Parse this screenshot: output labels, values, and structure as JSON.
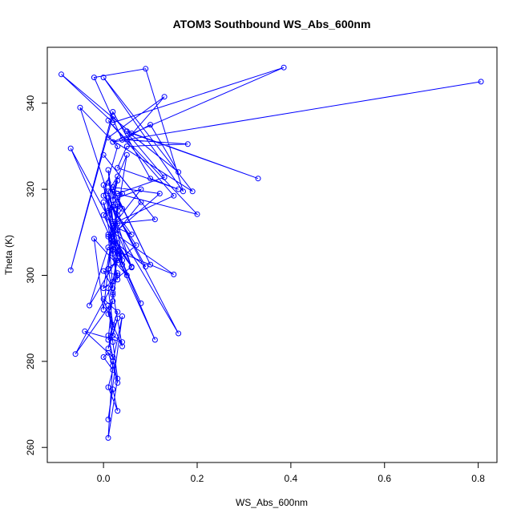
{
  "chart_data": {
    "type": "line",
    "title": "ATOM3 Southbound WS_Abs_600nm",
    "xlabel": "WS_Abs_600nm",
    "ylabel": "Theta (K)",
    "xlim": [
      -0.12,
      0.84
    ],
    "ylim": [
      256.5,
      353
    ],
    "x_ticks": [
      0.0,
      0.2,
      0.4,
      0.6,
      0.8
    ],
    "x_tick_labels": [
      "0.0",
      "0.2",
      "0.4",
      "0.6",
      "0.8"
    ],
    "y_ticks": [
      260,
      280,
      300,
      320,
      340
    ],
    "y_tick_labels": [
      "260",
      "280",
      "300",
      "320",
      "340"
    ],
    "grid": false,
    "color": "#0000ff",
    "marker": "open-circle",
    "series": [
      {
        "x": [
          0.806,
          0.02,
          0.385,
          0.02,
          -0.09,
          0.06,
          0.33,
          0.05,
          0.16,
          0.1,
          0.04,
          -0.02,
          0.09,
          0.17,
          0.0,
          0.19,
          0.01,
          0.13,
          0.05,
          0.18,
          0.05,
          0.03,
          0.16,
          0.1,
          0.02,
          -0.07,
          0.02,
          0.13,
          0.03,
          0.2,
          0.01,
          0.15,
          0.02,
          0.11,
          0.0,
          0.08,
          0.02,
          0.06,
          -0.05,
          0.03,
          0.0,
          0.07,
          0.01,
          0.05,
          0.02,
          0.04,
          0.0,
          0.03,
          0.06,
          0.02,
          0.01,
          0.04,
          0.0,
          0.03,
          0.02,
          0.01,
          0.03,
          0.02,
          0.01,
          0.04,
          0.0,
          0.02,
          0.03,
          0.01,
          0.02,
          0.0,
          0.03,
          -0.06,
          0.02,
          0.01,
          0.04,
          0.02,
          0.01,
          0.03,
          0.0,
          0.02,
          0.01,
          0.03,
          0.02,
          0.04,
          -0.04,
          0.02,
          0.01,
          0.03,
          0.02,
          0.01,
          0.0,
          0.02,
          0.01,
          0.03,
          0.02,
          0.01,
          0.04,
          0.02,
          0.01,
          0.03,
          0.02,
          0.01,
          0.02,
          0.01,
          0.03,
          0.02,
          0.01,
          0.03,
          0.02,
          0.03,
          -0.07,
          0.01,
          0.02,
          0.0,
          -0.02,
          0.05,
          0.03,
          -0.03,
          0.01,
          0.15,
          0.02,
          0.0,
          0.06,
          0.02,
          0.08,
          0.03,
          0.11,
          0.01,
          0.09,
          0.02,
          0.16,
          0.03,
          0.12,
          0.02,
          0.1,
          0.03,
          0.08,
          0.02,
          0.06,
          0.03,
          0.04,
          0.01,
          0.03,
          0.02,
          0.03,
          0.01,
          0.03,
          0.02,
          0.03
        ],
        "y": [
          345.0,
          331.0,
          348.3,
          335.5,
          346.7,
          333.0,
          322.5,
          333.5,
          324.0,
          335.0,
          331.5,
          346.0,
          348.0,
          319.5,
          346.0,
          319.5,
          332.0,
          341.5,
          331.5,
          330.5,
          330.0,
          325.0,
          320.0,
          322.5,
          338.0,
          301.2,
          337.0,
          322.8,
          319.0,
          314.2,
          336.0,
          318.5,
          312.0,
          313.0,
          328.0,
          317.0,
          309.0,
          301.8,
          339.0,
          330.0,
          318.5,
          307.0,
          301.5,
          328.0,
          320.0,
          319.0,
          314.0,
          307.5,
          302.0,
          312.5,
          324.5,
          303.5,
          321.0,
          304.0,
          310.5,
          315.0,
          316.0,
          305.0,
          318.0,
          302.5,
          317.0,
          306.0,
          299.0,
          309.5,
          297.0,
          301.0,
          300.0,
          281.7,
          294.0,
          291.0,
          283.5,
          296.0,
          285.0,
          291.5,
          294.5,
          288.0,
          283.0,
          290.0,
          286.0,
          284.5,
          287.0,
          281.0,
          286.0,
          275.0,
          279.0,
          282.0,
          281.0,
          278.0,
          274.0,
          268.5,
          273.5,
          266.5,
          290.5,
          280.0,
          262.2,
          276.0,
          284.5,
          293.0,
          288.5,
          297.0,
          300.5,
          295.5,
          301.5,
          303.5,
          298.5,
          305.0,
          329.5,
          313.5,
          311.0,
          292.0,
          308.5,
          300.0,
          304.0,
          293.0,
          306.5,
          300.2,
          310.0,
          297.0,
          302.0,
          308.0,
          293.5,
          305.5,
          285.0,
          309.0,
          302.0,
          316.0,
          286.5,
          310.5,
          319.0,
          320.5,
          302.5,
          318.0,
          320.0,
          311.5,
          309.5,
          314.0,
          315.5,
          321.5,
          316.5,
          310.0,
          312.0,
          319.5,
          323.0,
          317.5,
          322.0
        ]
      }
    ]
  }
}
